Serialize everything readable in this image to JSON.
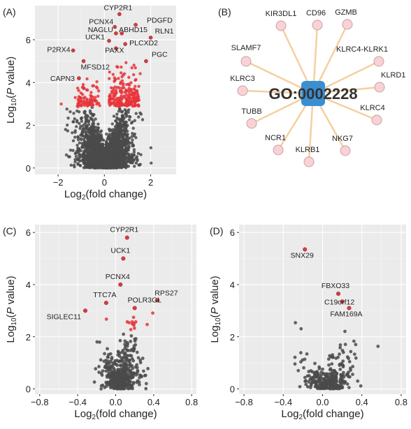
{
  "colors": {
    "background": "#ffffff",
    "panel_bg": "#ebebeb",
    "grid": "#ffffff",
    "grid_minor": "#f5f5f5",
    "nonsig": "#4a4a4a",
    "sig": "#e8343a",
    "edge": "#f5cfa0",
    "hub_fill": "#3a8fd1",
    "node_fill": "#f9d2d5",
    "node_stroke": "#c8a0a4"
  },
  "chart_data": [
    {
      "panel": "(A)",
      "type": "scatter",
      "xlabel_main": "Log",
      "xlabel_sub": "2",
      "xlabel_rest": "(fold change)",
      "ylabel_main": "Log",
      "ylabel_sub": "10",
      "ylabel_p": "P",
      "ylabel_rest": " value)",
      "xlim": [
        -3,
        3.1
      ],
      "ylim": [
        -0.3,
        7.6
      ],
      "xticks": [
        -2,
        0,
        2
      ],
      "yticks": [
        0,
        2,
        4,
        6
      ],
      "labels": [
        {
          "text": "CYP2R1",
          "x": 0.65,
          "y": 7.2
        },
        {
          "text": "PCNX4",
          "x": 0.45,
          "y": 6.6
        },
        {
          "text": "PDGFD",
          "x": 1.35,
          "y": 6.7
        },
        {
          "text": "NAGLU",
          "x": 0.5,
          "y": 6.3
        },
        {
          "text": "ABHD15",
          "x": 0.75,
          "y": 6.3
        },
        {
          "text": "RLN1",
          "x": 2.0,
          "y": 6.1
        },
        {
          "text": "UCK1",
          "x": 0.2,
          "y": 5.95
        },
        {
          "text": "PLCXD2",
          "x": 0.9,
          "y": 5.8
        },
        {
          "text": "PAXX",
          "x": 0.5,
          "y": 5.6
        },
        {
          "text": "P2RX4",
          "x": -1.35,
          "y": 5.5
        },
        {
          "text": "PGC",
          "x": 1.8,
          "y": 5.0
        },
        {
          "text": "MFSD12",
          "x": -0.9,
          "y": 5.0
        },
        {
          "text": "CAPN3",
          "x": -1.1,
          "y": 4.2
        }
      ]
    },
    {
      "panel": "(B)",
      "type": "network",
      "hub": "GO:0002228",
      "nodes": [
        "CD96",
        "GZMB",
        "KLRC4-KLRK1",
        "KLRD1",
        "KLRC4",
        "NKG7",
        "KLRB1",
        "NCR1",
        "TUBB",
        "KLRC3",
        "SLAMF7",
        "KIR3DL1"
      ]
    },
    {
      "panel": "(C)",
      "type": "scatter",
      "xlabel_main": "Log",
      "xlabel_sub": "2",
      "xlabel_rest": "(fold change)",
      "ylabel_main": "Log",
      "ylabel_sub": "10",
      "ylabel_p": "P",
      "ylabel_rest": " value)",
      "xlim": [
        -0.85,
        0.85
      ],
      "ylim": [
        -0.2,
        6.3
      ],
      "xticks": [
        -0.8,
        -0.4,
        0.0,
        0.4,
        0.8
      ],
      "yticks": [
        0,
        2,
        4,
        6
      ],
      "labels": [
        {
          "text": "CYP2R1",
          "x": 0.12,
          "y": 5.8
        },
        {
          "text": "UCK1",
          "x": 0.08,
          "y": 5.0
        },
        {
          "text": "PCNX4",
          "x": 0.05,
          "y": 4.0
        },
        {
          "text": "RPS27",
          "x": 0.44,
          "y": 3.4
        },
        {
          "text": "TTC7A",
          "x": -0.1,
          "y": 3.3
        },
        {
          "text": "POLR3GL",
          "x": 0.2,
          "y": 3.1
        },
        {
          "text": "SIGLEC11",
          "x": -0.32,
          "y": 3.0
        }
      ]
    },
    {
      "panel": "(D)",
      "type": "scatter",
      "xlabel_main": "Log",
      "xlabel_sub": "2",
      "xlabel_rest": "(fold change)",
      "ylabel_main": "Log",
      "ylabel_sub": "10",
      "ylabel_p": "P",
      "ylabel_rest": " value)",
      "xlim": [
        -0.85,
        0.85
      ],
      "ylim": [
        -0.2,
        6.3
      ],
      "xticks": [
        -0.8,
        -0.4,
        0.0,
        0.4,
        0.8
      ],
      "yticks": [
        0,
        2,
        4,
        6
      ],
      "labels": [
        {
          "text": "SNX29",
          "x": -0.18,
          "y": 5.35
        },
        {
          "text": "FBXO33",
          "x": 0.16,
          "y": 3.65
        },
        {
          "text": "C19orf12",
          "x": 0.2,
          "y": 3.35
        },
        {
          "text": "FAM169A",
          "x": 0.27,
          "y": 3.1
        }
      ]
    }
  ]
}
